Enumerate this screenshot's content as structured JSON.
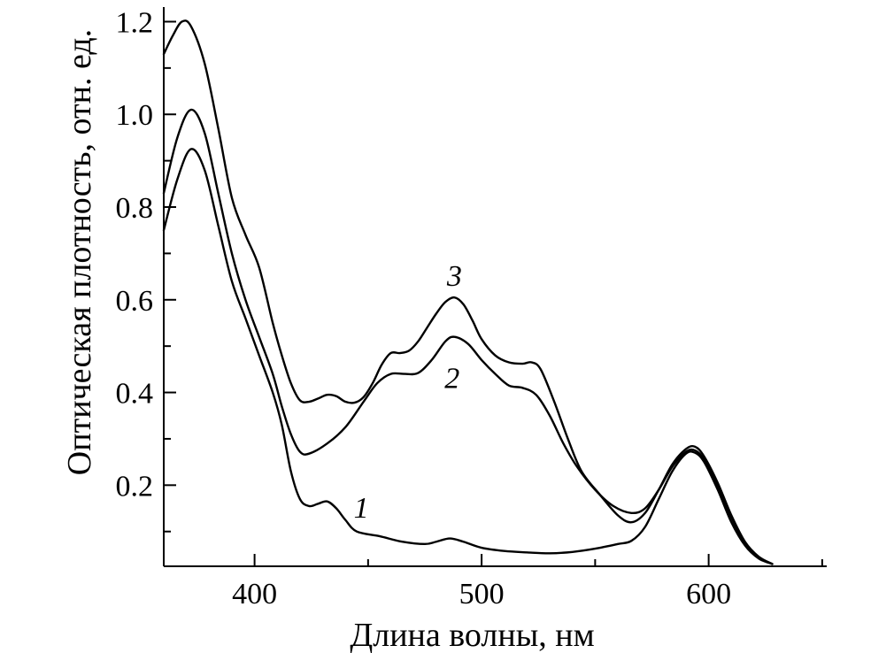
{
  "chart_data": {
    "type": "line",
    "title": "",
    "xlabel": "Длина волны, нм",
    "ylabel": "Оптическая плотность, отн. ед.",
    "xlim": [
      360,
      652
    ],
    "ylim": [
      0.025,
      1.22
    ],
    "x_major_ticks": [
      400,
      500,
      600
    ],
    "x_major_tick_labels": [
      "400",
      "500",
      "600"
    ],
    "x_minor_ticks": [
      450,
      550,
      650
    ],
    "y_major_ticks": [
      0.2,
      0.4,
      0.6,
      0.8,
      1.0,
      1.2
    ],
    "y_major_tick_labels": [
      "0.2",
      "0.4",
      "0.6",
      "0.8",
      "1.0",
      "1.2"
    ],
    "y_minor_ticks": [
      0.1,
      0.3,
      0.5,
      0.7,
      0.9,
      1.1
    ],
    "grid": false,
    "legend": "none",
    "series": [
      {
        "label": "1",
        "label_at": [
          447,
          0.13
        ],
        "points": [
          [
            360,
            0.75
          ],
          [
            366,
            0.86
          ],
          [
            372,
            0.925
          ],
          [
            378,
            0.88
          ],
          [
            384,
            0.76
          ],
          [
            390,
            0.64
          ],
          [
            396,
            0.56
          ],
          [
            402,
            0.48
          ],
          [
            408,
            0.4
          ],
          [
            412,
            0.33
          ],
          [
            416,
            0.23
          ],
          [
            420,
            0.17
          ],
          [
            424,
            0.155
          ],
          [
            428,
            0.16
          ],
          [
            432,
            0.165
          ],
          [
            436,
            0.15
          ],
          [
            440,
            0.125
          ],
          [
            445,
            0.1
          ],
          [
            455,
            0.09
          ],
          [
            465,
            0.078
          ],
          [
            475,
            0.073
          ],
          [
            480,
            0.078
          ],
          [
            486,
            0.085
          ],
          [
            492,
            0.078
          ],
          [
            500,
            0.065
          ],
          [
            510,
            0.058
          ],
          [
            520,
            0.055
          ],
          [
            530,
            0.053
          ],
          [
            540,
            0.056
          ],
          [
            550,
            0.063
          ],
          [
            560,
            0.073
          ],
          [
            566,
            0.08
          ],
          [
            572,
            0.11
          ],
          [
            578,
            0.17
          ],
          [
            584,
            0.23
          ],
          [
            590,
            0.268
          ],
          [
            594,
            0.27
          ],
          [
            598,
            0.25
          ],
          [
            604,
            0.19
          ],
          [
            610,
            0.12
          ],
          [
            616,
            0.07
          ],
          [
            622,
            0.042
          ],
          [
            628,
            0.03
          ]
        ]
      },
      {
        "label": "2",
        "label_at": [
          487,
          0.41
        ],
        "points": [
          [
            360,
            0.83
          ],
          [
            366,
            0.95
          ],
          [
            372,
            1.01
          ],
          [
            378,
            0.96
          ],
          [
            384,
            0.83
          ],
          [
            390,
            0.7
          ],
          [
            396,
            0.6
          ],
          [
            402,
            0.52
          ],
          [
            408,
            0.44
          ],
          [
            412,
            0.37
          ],
          [
            416,
            0.31
          ],
          [
            420,
            0.272
          ],
          [
            424,
            0.268
          ],
          [
            432,
            0.29
          ],
          [
            440,
            0.325
          ],
          [
            448,
            0.38
          ],
          [
            454,
            0.42
          ],
          [
            460,
            0.44
          ],
          [
            466,
            0.44
          ],
          [
            472,
            0.442
          ],
          [
            478,
            0.47
          ],
          [
            484,
            0.51
          ],
          [
            488,
            0.52
          ],
          [
            494,
            0.505
          ],
          [
            500,
            0.47
          ],
          [
            506,
            0.44
          ],
          [
            512,
            0.415
          ],
          [
            518,
            0.41
          ],
          [
            524,
            0.395
          ],
          [
            530,
            0.35
          ],
          [
            536,
            0.29
          ],
          [
            542,
            0.24
          ],
          [
            550,
            0.19
          ],
          [
            558,
            0.155
          ],
          [
            566,
            0.14
          ],
          [
            572,
            0.15
          ],
          [
            578,
            0.19
          ],
          [
            584,
            0.24
          ],
          [
            590,
            0.272
          ],
          [
            594,
            0.275
          ],
          [
            598,
            0.255
          ],
          [
            604,
            0.2
          ],
          [
            610,
            0.13
          ],
          [
            616,
            0.075
          ],
          [
            622,
            0.045
          ],
          [
            628,
            0.03
          ]
        ]
      },
      {
        "label": "3",
        "label_at": [
          488,
          0.63
        ],
        "points": [
          [
            360,
            1.13
          ],
          [
            364,
            1.17
          ],
          [
            368,
            1.2
          ],
          [
            372,
            1.19
          ],
          [
            378,
            1.11
          ],
          [
            384,
            0.97
          ],
          [
            390,
            0.82
          ],
          [
            396,
            0.74
          ],
          [
            402,
            0.67
          ],
          [
            408,
            0.55
          ],
          [
            412,
            0.48
          ],
          [
            416,
            0.42
          ],
          [
            420,
            0.383
          ],
          [
            424,
            0.38
          ],
          [
            428,
            0.387
          ],
          [
            432,
            0.395
          ],
          [
            436,
            0.392
          ],
          [
            440,
            0.38
          ],
          [
            444,
            0.378
          ],
          [
            448,
            0.39
          ],
          [
            452,
            0.42
          ],
          [
            456,
            0.46
          ],
          [
            460,
            0.485
          ],
          [
            464,
            0.485
          ],
          [
            468,
            0.49
          ],
          [
            472,
            0.51
          ],
          [
            476,
            0.54
          ],
          [
            480,
            0.57
          ],
          [
            484,
            0.595
          ],
          [
            488,
            0.605
          ],
          [
            492,
            0.59
          ],
          [
            496,
            0.555
          ],
          [
            500,
            0.515
          ],
          [
            506,
            0.48
          ],
          [
            512,
            0.465
          ],
          [
            518,
            0.462
          ],
          [
            522,
            0.465
          ],
          [
            526,
            0.45
          ],
          [
            532,
            0.38
          ],
          [
            538,
            0.3
          ],
          [
            544,
            0.23
          ],
          [
            552,
            0.18
          ],
          [
            560,
            0.135
          ],
          [
            566,
            0.12
          ],
          [
            572,
            0.14
          ],
          [
            578,
            0.19
          ],
          [
            584,
            0.245
          ],
          [
            590,
            0.278
          ],
          [
            594,
            0.283
          ],
          [
            598,
            0.262
          ],
          [
            604,
            0.205
          ],
          [
            610,
            0.135
          ],
          [
            616,
            0.078
          ],
          [
            622,
            0.046
          ],
          [
            628,
            0.03
          ]
        ]
      }
    ]
  }
}
